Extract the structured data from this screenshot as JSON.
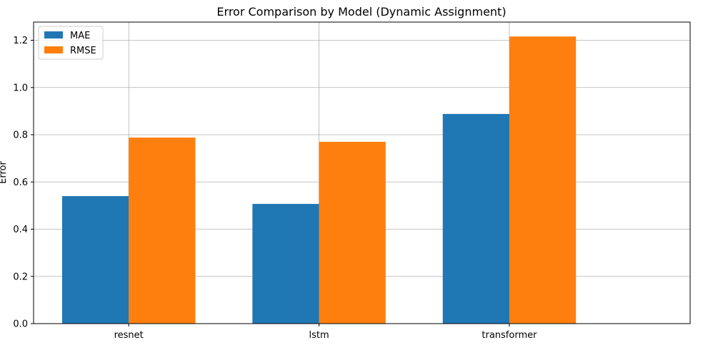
{
  "chart_data": {
    "type": "bar",
    "title": "Error Comparison by Model (Dynamic Assignment)",
    "xlabel": "",
    "ylabel": "Error",
    "categories": [
      "resnet",
      "lstm",
      "transformer"
    ],
    "series": [
      {
        "name": "MAE",
        "values": [
          0.54,
          0.507,
          0.888
        ],
        "color": "#1f77b4"
      },
      {
        "name": "RMSE",
        "values": [
          0.788,
          0.77,
          1.216
        ],
        "color": "#ff7f0e"
      }
    ],
    "ylim": [
      0,
      1.277
    ],
    "yticks": [
      "0.0",
      "0.2",
      "0.4",
      "0.6",
      "0.8",
      "1.0",
      "1.2"
    ],
    "grid": true,
    "legend_position": "top-left"
  }
}
